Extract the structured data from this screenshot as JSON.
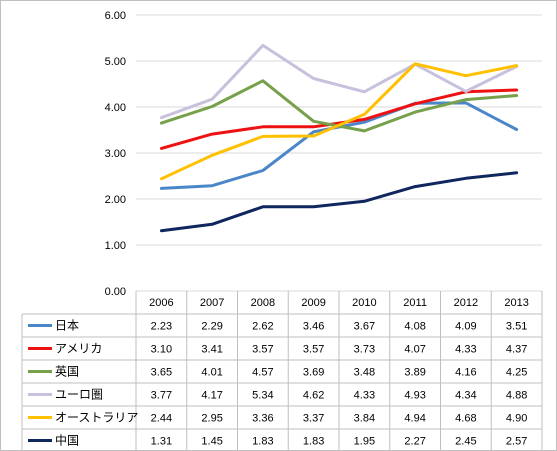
{
  "chart_data": {
    "type": "line",
    "title": "",
    "xlabel": "",
    "ylabel": "",
    "ylim": [
      0,
      6
    ],
    "y_ticks": [
      "0.00",
      "1.00",
      "2.00",
      "3.00",
      "4.00",
      "5.00",
      "6.00"
    ],
    "grid": "horizontal",
    "legend_placement": "data-table-left",
    "categories": [
      "2006",
      "2007",
      "2008",
      "2009",
      "2010",
      "2011",
      "2012",
      "2013"
    ],
    "series": [
      {
        "name": "日本",
        "color": "#4a86c8",
        "values": [
          2.23,
          2.29,
          2.62,
          3.46,
          3.67,
          4.08,
          4.09,
          3.51
        ],
        "labels": [
          "2.23",
          "2.29",
          "2.62",
          "3.46",
          "3.67",
          "4.08",
          "4.09",
          "3.51"
        ]
      },
      {
        "name": "アメリカ",
        "color": "#ee1111",
        "values": [
          3.1,
          3.41,
          3.57,
          3.57,
          3.73,
          4.07,
          4.33,
          4.37
        ],
        "labels": [
          "3.10",
          "3.41",
          "3.57",
          "3.57",
          "3.73",
          "4.07",
          "4.33",
          "4.37"
        ]
      },
      {
        "name": "英国",
        "color": "#77a04a",
        "values": [
          3.65,
          4.01,
          4.57,
          3.69,
          3.48,
          3.89,
          4.16,
          4.25
        ],
        "labels": [
          "3.65",
          "4.01",
          "4.57",
          "3.69",
          "3.48",
          "3.89",
          "4.16",
          "4.25"
        ]
      },
      {
        "name": "ユーロ圏",
        "color": "#c8c0dc",
        "values": [
          3.77,
          4.17,
          5.34,
          4.62,
          4.33,
          4.93,
          4.34,
          4.88
        ],
        "labels": [
          "3.77",
          "4.17",
          "5.34",
          "4.62",
          "4.33",
          "4.93",
          "4.34",
          "4.88"
        ]
      },
      {
        "name": "オーストラリア",
        "color": "#ffc000",
        "values": [
          2.44,
          2.95,
          3.36,
          3.37,
          3.84,
          4.94,
          4.68,
          4.9
        ],
        "labels": [
          "2.44",
          "2.95",
          "3.36",
          "3.37",
          "3.84",
          "4.94",
          "4.68",
          "4.90"
        ]
      },
      {
        "name": "中国",
        "color": "#10265e",
        "values": [
          1.31,
          1.45,
          1.83,
          1.83,
          1.95,
          2.27,
          2.45,
          2.57
        ],
        "labels": [
          "1.31",
          "1.45",
          "1.83",
          "1.83",
          "1.95",
          "2.27",
          "2.45",
          "2.57"
        ]
      }
    ]
  }
}
